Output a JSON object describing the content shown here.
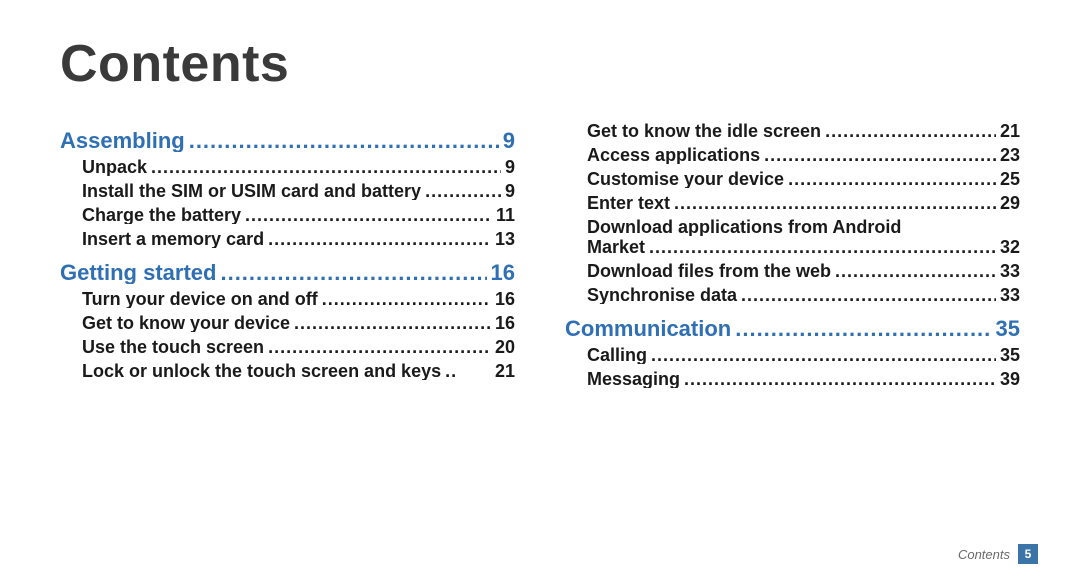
{
  "title": "Contents",
  "footer": {
    "label": "Contents",
    "page": "5"
  },
  "leader_dots": " ..................................................................................................................................",
  "col1": [
    {
      "type": "section",
      "label": "Assembling",
      "page": "9"
    },
    {
      "type": "item",
      "label": "Unpack",
      "page": "9"
    },
    {
      "type": "item",
      "label": "Install the SIM or USIM card and battery",
      "page": "9"
    },
    {
      "type": "item",
      "label": "Charge the battery",
      "page": "11"
    },
    {
      "type": "item",
      "label": "Insert a memory card",
      "page": "13"
    },
    {
      "type": "section",
      "label": "Getting started",
      "page": "16"
    },
    {
      "type": "item",
      "label": "Turn your device on and off",
      "page": "16"
    },
    {
      "type": "item",
      "label": "Get to know your device",
      "page": "16"
    },
    {
      "type": "item",
      "label": "Use the touch screen",
      "page": "20"
    },
    {
      "type": "item",
      "label": "Lock or unlock the touch screen and keys",
      "leader_short": " ..",
      "page": "21"
    }
  ],
  "col2": [
    {
      "type": "item",
      "label": "Get to know the idle screen",
      "page": "21"
    },
    {
      "type": "item",
      "label": "Access applications",
      "page": "23"
    },
    {
      "type": "item",
      "label": "Customise your device",
      "page": "25"
    },
    {
      "type": "item",
      "label": "Enter text",
      "page": "29"
    },
    {
      "type": "item-head",
      "label": "Download applications from Android"
    },
    {
      "type": "item-cont",
      "label": "Market",
      "page": "32"
    },
    {
      "type": "item",
      "label": "Download files from the web",
      "page": "33"
    },
    {
      "type": "item",
      "label": "Synchronise data",
      "page": "33"
    },
    {
      "type": "section",
      "label": "Communication",
      "page": "35"
    },
    {
      "type": "item",
      "label": "Calling",
      "page": "35"
    },
    {
      "type": "item",
      "label": "Messaging",
      "page": "39"
    }
  ]
}
